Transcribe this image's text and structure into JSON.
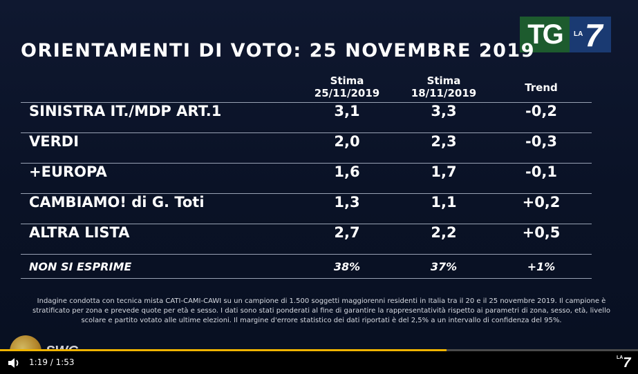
{
  "logo": {
    "tg": "TG",
    "la": "LA",
    "seven": "7"
  },
  "title": "ORIENTAMENTI DI VOTO: 25 NOVEMBRE 2019",
  "headers": {
    "col1_line1": "Stima",
    "col1_line2": "25/11/2019",
    "col2_line1": "Stima",
    "col2_line2": "18/11/2019",
    "col3": "Trend"
  },
  "rows": [
    {
      "label": "SINISTRA IT./MDP ART.1",
      "v1": "3,1",
      "v2": "3,3",
      "trend": "-0,2"
    },
    {
      "label": "VERDI",
      "v1": "2,0",
      "v2": "2,3",
      "trend": "-0,3"
    },
    {
      "label": "+EUROPA",
      "v1": "1,6",
      "v2": "1,7",
      "trend": "-0,1"
    },
    {
      "label": "CAMBIAMO! di G. Toti",
      "v1": "1,3",
      "v2": "1,1",
      "trend": "+0,2"
    },
    {
      "label": "ALTRA LISTA",
      "v1": "2,7",
      "v2": "2,2",
      "trend": "+0,5"
    }
  ],
  "no_opinion": {
    "label": "NON SI ESPRIME",
    "v1": "38%",
    "v2": "37%",
    "trend": "+1%"
  },
  "footnote": "Indagine condotta con tecnica mista CATI-CAMI-CAWI su un campione di 1.500 soggetti maggiorenni residenti in Italia tra il 20 e il 25 novembre 2019. Il campione è stratificato per zona e prevede quote per età e sesso. I dati sono stati ponderati al fine di garantire la rappresentatività rispetto ai parametri di zona, sesso, età, livello scolare e partito votato alle ultime elezioni. Il margine d'errore statistico dei dati riportati è del 2,5% a un intervallo di confidenza del 95%.",
  "watermark": "SWG",
  "player": {
    "time": "1:19 / 1:53",
    "progress": 0.7,
    "brand": "7",
    "brand_small": "LA",
    "progress_color": "#f0b400"
  }
}
